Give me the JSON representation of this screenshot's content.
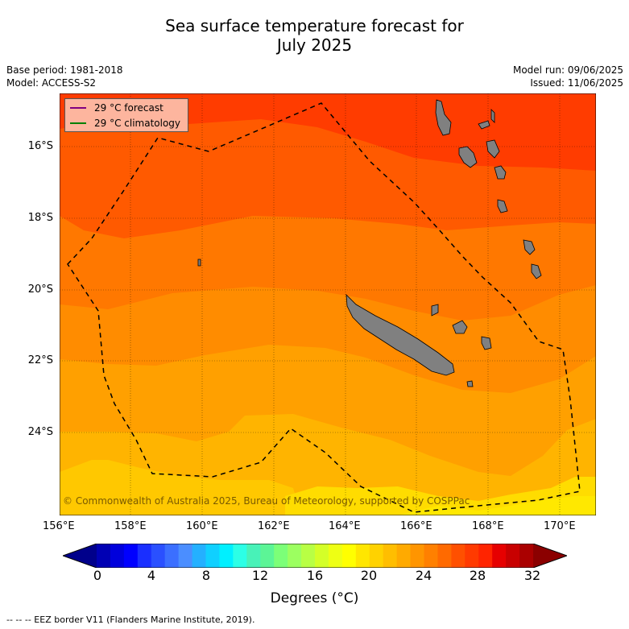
{
  "title_line1": "Sea surface temperature forecast for",
  "title_line2": "July 2025",
  "meta": {
    "base_period": "Base period: 1981-2018",
    "model": "Model: ACCESS-S2",
    "model_run": "Model run: 09/06/2025",
    "issued": "Issued: 11/06/2025"
  },
  "legend": {
    "forecast": "29 °C  forecast",
    "climatology": "29 °C  climatology",
    "forecast_color": "#800080",
    "climatology_color": "#008000"
  },
  "copyright": "© Commonwealth of Australia 2025, Bureau of Meteorology, supported by COSPPac",
  "x_ticks": [
    "156°E",
    "158°E",
    "160°E",
    "162°E",
    "164°E",
    "166°E",
    "168°E",
    "170°E"
  ],
  "y_ticks": [
    "16°S",
    "18°S",
    "20°S",
    "22°S",
    "24°S"
  ],
  "colorbar": {
    "ticks": [
      "0",
      "4",
      "8",
      "12",
      "16",
      "20",
      "24",
      "28",
      "32"
    ],
    "title": "Degrees (°C)",
    "colors": [
      "#00008b",
      "#0000b4",
      "#0000dc",
      "#0000ff",
      "#1a2fff",
      "#2a50ff",
      "#3b6fff",
      "#4b8eff",
      "#24b0ff",
      "#10d0ff",
      "#00f0ff",
      "#2cffe6",
      "#48f2b8",
      "#5cf596",
      "#7cff78",
      "#9cff60",
      "#b8ff44",
      "#d4ff28",
      "#eeff14",
      "#ffff00",
      "#ffe600",
      "#ffd200",
      "#ffbe00",
      "#ffaa00",
      "#ff9500",
      "#ff8000",
      "#ff6a00",
      "#ff5000",
      "#ff3a00",
      "#ff2400",
      "#e60000",
      "#c80000",
      "#aa0000",
      "#8b0000"
    ]
  },
  "footnote": "--  --  -- EEZ border V11 (Flanders Marine Institute, 2019).",
  "colors": {
    "sst_bands": [
      "#ff3c00",
      "#ff5a00",
      "#ff7800",
      "#ff8c00",
      "#ffa000",
      "#ffb400",
      "#ffc800",
      "#ffdc00",
      "#ffe800"
    ],
    "land": "#808080"
  }
}
